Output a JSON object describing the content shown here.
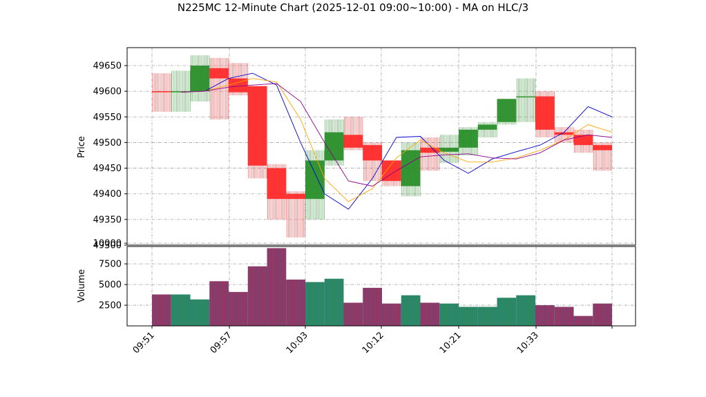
{
  "chart_data": {
    "type": "candlestick",
    "title": "N225MC 12-Minute Chart (2025-12-01 09:00~10:00) - MA on HLC/3",
    "price_panel": {
      "ylabel": "Price",
      "ylim": [
        49300,
        49685
      ],
      "yticks": [
        49300,
        49350,
        49400,
        49450,
        49500,
        49550,
        49600,
        49650
      ],
      "grid": true
    },
    "volume_panel": {
      "ylabel": "Volume",
      "ylim": [
        0,
        9600
      ],
      "yticks": [
        2500,
        5000,
        7500,
        10000
      ],
      "grid": true
    },
    "x_tick_labels": [
      "09:51",
      "09:57",
      "10:03",
      "10:12",
      "10:21",
      "10:33"
    ],
    "colors": {
      "up": "#228b22",
      "down": "#ff2222",
      "volume_bar": "#7a3f8f",
      "volume_edge": "#1f77b4",
      "ma_fast": "#0000cd",
      "ma_mid": "#ffa500",
      "ma_slow": "#8b008b"
    },
    "candles": [
      {
        "open": 49600,
        "high": 49635,
        "low": 49560,
        "close": 49598,
        "volume": 3800
      },
      {
        "open": 49598,
        "high": 49640,
        "low": 49560,
        "close": 49600,
        "volume": 3800
      },
      {
        "open": 49600,
        "high": 49670,
        "low": 49580,
        "close": 49650,
        "volume": 3200
      },
      {
        "open": 49645,
        "high": 49665,
        "low": 49545,
        "close": 49625,
        "volume": 5400
      },
      {
        "open": 49625,
        "high": 49655,
        "low": 49592,
        "close": 49598,
        "volume": 4100
      },
      {
        "open": 49610,
        "high": 49610,
        "low": 49430,
        "close": 49455,
        "volume": 7200
      },
      {
        "open": 49450,
        "high": 49458,
        "low": 49350,
        "close": 49390,
        "volume": 9400
      },
      {
        "open": 49400,
        "high": 49405,
        "low": 49315,
        "close": 49390,
        "volume": 5600
      },
      {
        "open": 49390,
        "high": 49485,
        "low": 49350,
        "close": 49465,
        "volume": 5300
      },
      {
        "open": 49465,
        "high": 49545,
        "low": 49455,
        "close": 49520,
        "volume": 5700
      },
      {
        "open": 49515,
        "high": 49550,
        "low": 49485,
        "close": 49490,
        "volume": 2800
      },
      {
        "open": 49495,
        "high": 49500,
        "low": 49425,
        "close": 49465,
        "volume": 4600
      },
      {
        "open": 49465,
        "high": 49465,
        "low": 49415,
        "close": 49425,
        "volume": 2700
      },
      {
        "open": 49415,
        "high": 49500,
        "low": 49395,
        "close": 49485,
        "volume": 3700
      },
      {
        "open": 49490,
        "high": 49510,
        "low": 49445,
        "close": 49480,
        "volume": 2800
      },
      {
        "open": 49482,
        "high": 49515,
        "low": 49460,
        "close": 49490,
        "volume": 2700
      },
      {
        "open": 49490,
        "high": 49530,
        "low": 49475,
        "close": 49525,
        "volume": 2300
      },
      {
        "open": 49525,
        "high": 49540,
        "low": 49510,
        "close": 49535,
        "volume": 2300
      },
      {
        "open": 49540,
        "high": 49585,
        "low": 49535,
        "close": 49585,
        "volume": 3400
      },
      {
        "open": 49590,
        "high": 49625,
        "low": 49540,
        "close": 49590,
        "volume": 3700
      },
      {
        "open": 49590,
        "high": 49600,
        "low": 49510,
        "close": 49525,
        "volume": 2500
      },
      {
        "open": 49520,
        "high": 49530,
        "low": 49500,
        "close": 49515,
        "volume": 2300
      },
      {
        "open": 49515,
        "high": 49525,
        "low": 49480,
        "close": 49495,
        "volume": 1200
      },
      {
        "open": 49495,
        "high": 49500,
        "low": 49445,
        "close": 49485,
        "volume": 2700
      }
    ],
    "ma_lines": {
      "fast": [
        49598,
        49600,
        49625,
        49635,
        49612,
        49500,
        49400,
        49370,
        49430,
        49510,
        49512,
        49465,
        49440,
        49468,
        49482,
        49495,
        49520,
        49570,
        49550
      ],
      "mid": [
        49598,
        49600,
        49612,
        49625,
        49618,
        49545,
        49430,
        49385,
        49410,
        49470,
        49505,
        49480,
        49462,
        49462,
        49470,
        49485,
        49505,
        49535,
        49520
      ],
      "slow": [
        49598,
        49600,
        49608,
        49612,
        49615,
        49580,
        49500,
        49425,
        49415,
        49445,
        49472,
        49476,
        49478,
        49470,
        49468,
        49480,
        49505,
        49515,
        49510
      ]
    }
  }
}
